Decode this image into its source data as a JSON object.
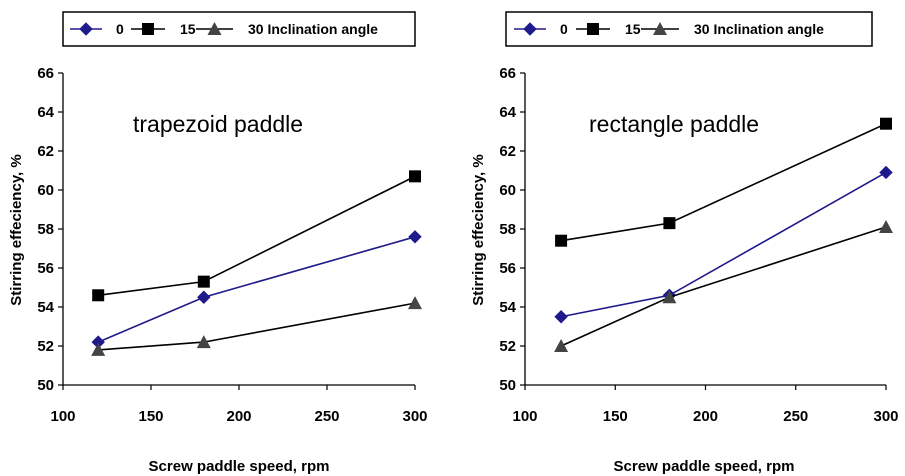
{
  "chart_data": [
    {
      "type": "line",
      "annotation": "trapezoid paddle",
      "xlabel": "Screw paddle speed, rpm",
      "ylabel": "Stirring effeciency, %",
      "xlim": [
        100,
        300
      ],
      "ylim": [
        50,
        66
      ],
      "xticks": [
        100,
        150,
        200,
        250,
        300
      ],
      "yticks": [
        50,
        52,
        54,
        56,
        58,
        60,
        62,
        64,
        66
      ],
      "x": [
        120,
        180,
        300
      ],
      "legend_labels": [
        "0",
        "15",
        "30 Inclination angle"
      ],
      "series": [
        {
          "name": "0",
          "values": [
            52.2,
            54.5,
            57.6
          ],
          "color": "#1f1a8c",
          "marker": "diamond"
        },
        {
          "name": "15",
          "values": [
            54.6,
            55.3,
            60.7
          ],
          "color": "#000000",
          "marker": "square"
        },
        {
          "name": "30",
          "values": [
            51.8,
            52.2,
            54.2
          ],
          "color": "#000000",
          "marker": "triangle"
        }
      ],
      "grid": false,
      "legend_position": "top"
    },
    {
      "type": "line",
      "annotation": "rectangle paddle",
      "xlabel": "Screw paddle speed, rpm",
      "ylabel": "Stirring effeciency, %",
      "xlim": [
        100,
        300
      ],
      "ylim": [
        50,
        66
      ],
      "xticks": [
        100,
        150,
        200,
        250,
        300
      ],
      "yticks": [
        50,
        52,
        54,
        56,
        58,
        60,
        62,
        64,
        66
      ],
      "x": [
        120,
        180,
        300
      ],
      "legend_labels": [
        "0",
        "15",
        "30 Inclination angle"
      ],
      "series": [
        {
          "name": "0",
          "values": [
            53.5,
            54.6,
            60.9
          ],
          "color": "#1f1a8c",
          "marker": "diamond"
        },
        {
          "name": "15",
          "values": [
            57.4,
            58.3,
            63.4
          ],
          "color": "#000000",
          "marker": "square"
        },
        {
          "name": "30",
          "values": [
            52.0,
            54.5,
            58.1
          ],
          "color": "#000000",
          "marker": "triangle"
        }
      ],
      "grid": false,
      "legend_position": "top"
    }
  ]
}
